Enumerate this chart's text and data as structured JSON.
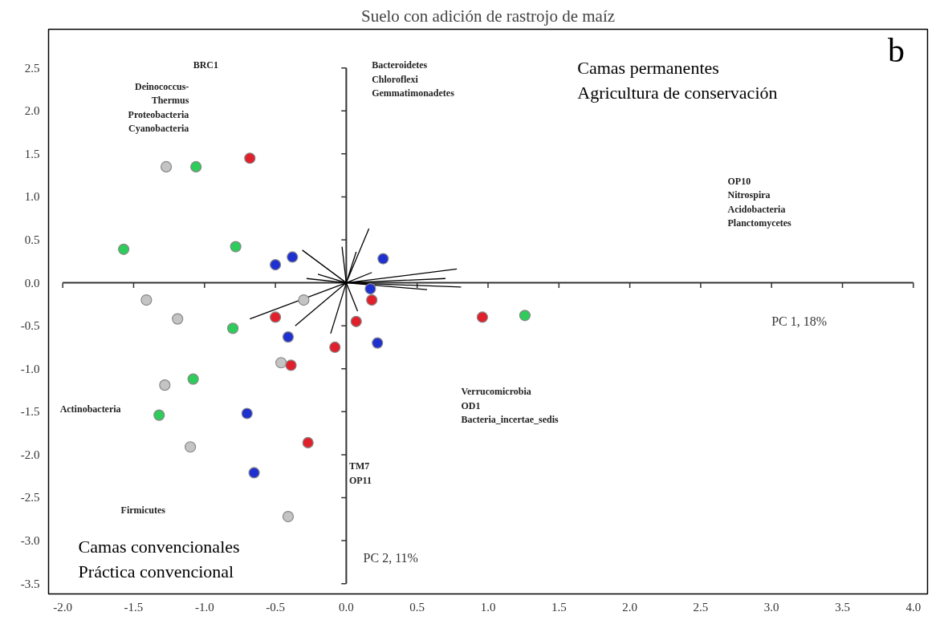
{
  "chart_data": {
    "type": "scatter",
    "title": "Suelo con adición de rastrojo de maíz",
    "xlabel": "PC 1, 18%",
    "ylabel": "PC 2, 11%",
    "xlim": [
      -2.1,
      4.1
    ],
    "ylim": [
      -3.62,
      2.95
    ],
    "xticks": [
      {
        "value": -2,
        "label": "-2.0"
      },
      {
        "value": -1.5,
        "label": "-1.5"
      },
      {
        "value": -1,
        "label": "-1.0"
      },
      {
        "value": -0.5,
        "label": "-0.5"
      },
      {
        "value": 0,
        "label": "0.0"
      },
      {
        "value": 0.5,
        "label": "0.5"
      },
      {
        "value": 1,
        "label": "1.0"
      },
      {
        "value": 1.5,
        "label": "1.5"
      },
      {
        "value": 2,
        "label": "2.0"
      },
      {
        "value": 2.5,
        "label": "2.5"
      },
      {
        "value": 3,
        "label": "3.0"
      },
      {
        "value": 3.5,
        "label": "3.5"
      },
      {
        "value": 4,
        "label": "4.0"
      }
    ],
    "yticks": [
      {
        "value": -3.5,
        "label": "-3.5"
      },
      {
        "value": -3,
        "label": "-3.0"
      },
      {
        "value": -2.5,
        "label": "-2.5"
      },
      {
        "value": -2,
        "label": "-2.0"
      },
      {
        "value": -1.5,
        "label": "-1.5"
      },
      {
        "value": -1,
        "label": "-1.0"
      },
      {
        "value": -0.5,
        "label": "-0.5"
      },
      {
        "value": 0,
        "label": "0.0"
      },
      {
        "value": 0.5,
        "label": "0.5"
      },
      {
        "value": 1,
        "label": "1.0"
      },
      {
        "value": 1.5,
        "label": "1.5"
      },
      {
        "value": 2,
        "label": "2.0"
      },
      {
        "value": 2.5,
        "label": "2.5"
      }
    ],
    "marker": "circle",
    "annotations": [
      "b",
      "Camas permanentes\nAgricultura de conservación",
      "Camas convencionales\nPráctica convencional",
      "BRC1",
      "Deinococcus-\nThermus\nProteobacteria\nCyanobacteria",
      "Bacteroidetes\nChloroflexi\nGemmatimonadetes",
      "OP10\nNitrospira\nAcidobacteria\nPlanctomycetes",
      "Verrucomicrobia\nOD1\nBacteria_incertae_sedis",
      "TM7\nOP11",
      "Actinobacteria",
      "Firmicutes"
    ],
    "series": [
      {
        "type": "line",
        "color": "#000000",
        "marker": "none",
        "x": [
          0,
          -0.31,
          null,
          0,
          -0.28,
          null,
          0,
          -0.03,
          null,
          0,
          -0.68,
          null,
          0,
          -0.36,
          null,
          0,
          -0.11,
          null,
          0,
          0.16,
          null,
          0,
          0.07,
          null,
          0,
          0.78,
          null,
          0,
          0.7,
          null,
          0,
          0.81,
          null,
          0,
          0.57,
          null,
          0,
          0.18,
          null,
          0,
          0.08,
          null,
          0,
          -0.2
        ],
        "values": [
          0,
          0.38,
          null,
          0,
          0.05,
          null,
          0,
          0.42,
          null,
          0,
          -0.42,
          null,
          0,
          -0.5,
          null,
          0,
          -0.59,
          null,
          0,
          0.63,
          null,
          0,
          0.36,
          null,
          0,
          0.16,
          null,
          0,
          0.05,
          null,
          0,
          -0.05,
          null,
          0,
          -0.08,
          null,
          0,
          0.12,
          null,
          0,
          -0.33,
          null,
          0,
          0.1
        ]
      },
      {
        "color": "#c4c4c4",
        "x": [
          -1.27,
          -1.41,
          -0.3,
          -1.19,
          -0.46,
          -1.28,
          -1.1,
          -0.41
        ],
        "values": [
          1.35,
          -0.2,
          -0.2,
          -0.42,
          -0.93,
          -1.19,
          -1.91,
          -2.72
        ]
      },
      {
        "color": "#2ecc5a",
        "x": [
          -1.06,
          -1.57,
          -0.78,
          -0.8,
          -1.08,
          -1.32,
          1.26
        ],
        "values": [
          1.35,
          0.39,
          0.42,
          -0.53,
          -1.12,
          -1.54,
          -0.38
        ]
      },
      {
        "color": "#e0202a",
        "x": [
          -0.68,
          -0.5,
          -0.08,
          -0.39,
          -0.27,
          0.07,
          0.18,
          0.96
        ],
        "values": [
          1.45,
          -0.4,
          -0.75,
          -0.96,
          -1.86,
          -0.45,
          -0.2,
          -0.4
        ]
      },
      {
        "color": "#1f30d0",
        "x": [
          -0.5,
          -0.38,
          -0.41,
          -0.7,
          -0.65,
          0.26,
          0.17,
          0.22
        ],
        "values": [
          0.21,
          0.3,
          -0.63,
          -1.52,
          -2.21,
          0.28,
          -0.07,
          -0.7
        ]
      }
    ]
  }
}
